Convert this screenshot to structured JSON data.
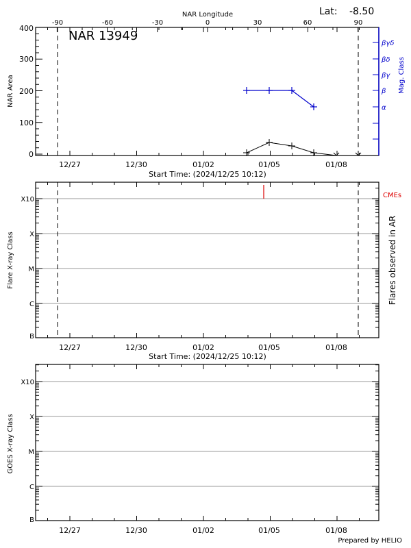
{
  "header": {
    "lat_label": "Lat:",
    "lat_value": "-8.50",
    "top_axis_title": "NAR Longitude",
    "region_title": "NAR 13949"
  },
  "footer": {
    "credit": "Prepared by HELIO"
  },
  "colors": {
    "axis": "#000000",
    "mag_class": "#0000cc",
    "cme": "#dd0000",
    "grid": "#999999"
  },
  "chart_data": [
    {
      "id": "nar-area-panel",
      "type": "line",
      "title": "NAR 13949",
      "xlabel": "Start Time: (2024/12/25 10:12)",
      "ylabel": "NAR Area",
      "y2label": "Mag. Class",
      "top_xlabel": "NAR Longitude",
      "ylim": [
        0,
        400
      ],
      "yticks": [
        0,
        100,
        200,
        300,
        400
      ],
      "x_tick_labels": [
        "12/27",
        "12/30",
        "01/02",
        "01/05",
        "01/08"
      ],
      "top_tick_labels": [
        "-90",
        "-60",
        "-30",
        "0",
        "30",
        "60",
        "90"
      ],
      "y2_tick_labels": [
        "α",
        "β",
        "βγ",
        "βδ",
        "βγδ"
      ],
      "limb_markers_longitude": [
        -90,
        90
      ],
      "series": [
        {
          "name": "NAR Area",
          "color": "#000000",
          "x": [
            "01/04",
            "01/05",
            "01/06",
            "01/07",
            "01/08",
            "01/09"
          ],
          "values": [
            5,
            38,
            27,
            5,
            0,
            0
          ]
        },
        {
          "name": "Mag. Class",
          "color": "#0000cc",
          "x": [
            "01/04",
            "01/05",
            "01/06",
            "01/07"
          ],
          "values": [
            "β",
            "β",
            "β",
            "α"
          ]
        }
      ]
    },
    {
      "id": "flares-panel",
      "type": "scatter",
      "xlabel": "Start Time: (2024/12/25 10:12)",
      "ylabel": "Flare X-ray Class",
      "y2label": "Flares observed in AR",
      "y_tick_labels": [
        "B",
        "C",
        "M",
        "X",
        "X10"
      ],
      "x_tick_labels": [
        "12/27",
        "12/30",
        "01/02",
        "01/05",
        "01/08"
      ],
      "legend": [
        "CMEs"
      ],
      "series": [
        {
          "name": "CMEs",
          "color": "#dd0000",
          "x": [
            "01/04 ~20:00"
          ],
          "values": [
            "marker"
          ]
        },
        {
          "name": "Flares",
          "x": [],
          "values": []
        }
      ]
    },
    {
      "id": "goes-panel",
      "type": "line",
      "ylabel": "GOES X-ray Class",
      "y_tick_labels": [
        "B",
        "C",
        "M",
        "X",
        "X10"
      ],
      "x_tick_labels": [
        "12/27",
        "12/30",
        "01/02",
        "01/05",
        "01/08"
      ],
      "series": []
    }
  ]
}
